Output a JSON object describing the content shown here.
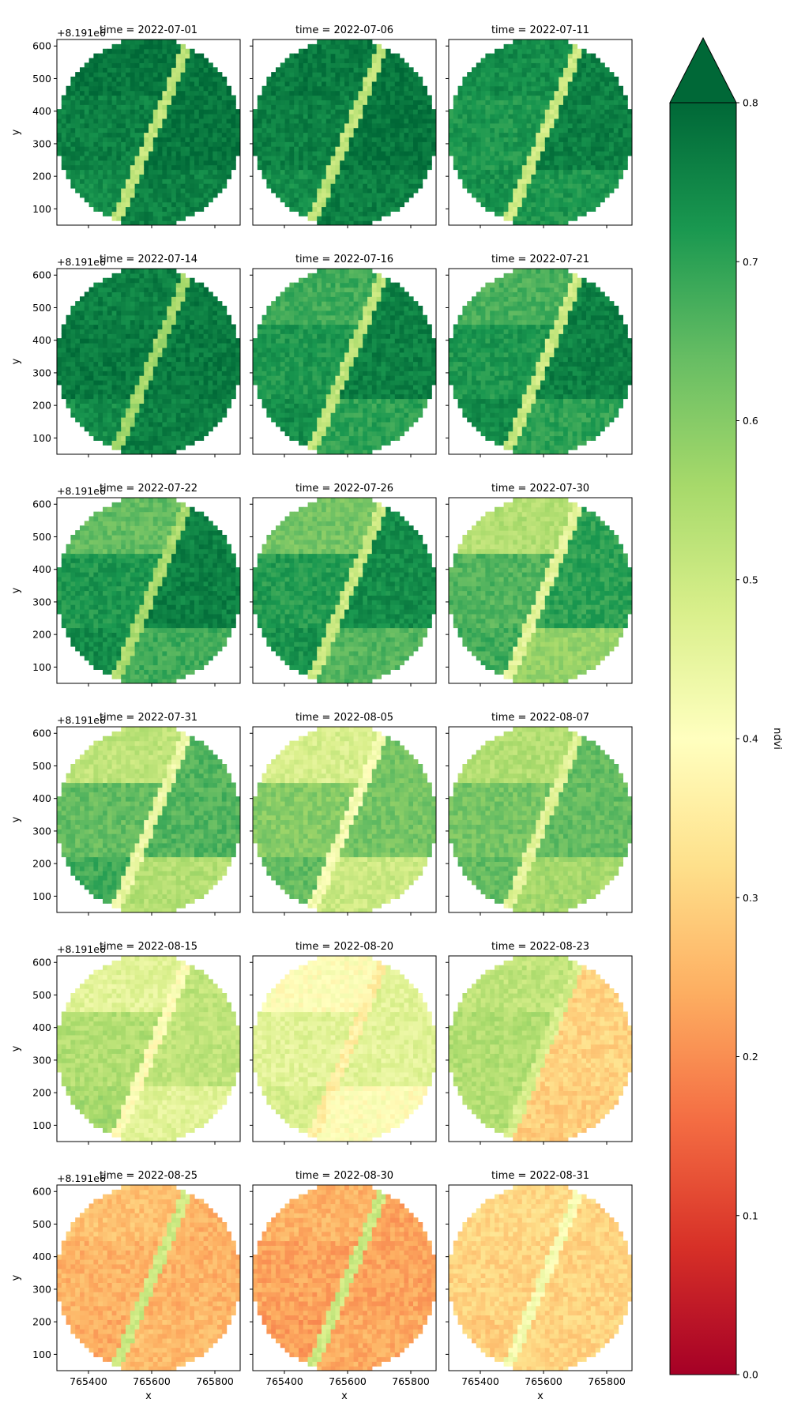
{
  "chart_data": {
    "type": "heatmap",
    "layout": "facet-grid",
    "rows": 6,
    "cols": 3,
    "panels": [
      {
        "title": "time = 2022-07-01",
        "profile": [
          0.78,
          0.76,
          0.74,
          0.52,
          0.78,
          0.76
        ]
      },
      {
        "title": "time = 2022-07-06",
        "profile": [
          0.77,
          0.76,
          0.74,
          0.52,
          0.78,
          0.76
        ]
      },
      {
        "title": "time = 2022-07-11",
        "profile": [
          0.74,
          0.72,
          0.73,
          0.5,
          0.76,
          0.72
        ]
      },
      {
        "title": "time = 2022-07-14",
        "profile": [
          0.76,
          0.77,
          0.74,
          0.56,
          0.77,
          0.76
        ]
      },
      {
        "title": "time = 2022-07-16",
        "profile": [
          0.68,
          0.72,
          0.74,
          0.52,
          0.76,
          0.7
        ]
      },
      {
        "title": "time = 2022-07-21",
        "profile": [
          0.67,
          0.72,
          0.74,
          0.5,
          0.76,
          0.7
        ]
      },
      {
        "title": "time = 2022-07-22",
        "profile": [
          0.64,
          0.72,
          0.74,
          0.55,
          0.76,
          0.68
        ]
      },
      {
        "title": "time = 2022-07-26",
        "profile": [
          0.62,
          0.71,
          0.73,
          0.5,
          0.74,
          0.66
        ]
      },
      {
        "title": "time = 2022-07-30",
        "profile": [
          0.54,
          0.66,
          0.68,
          0.46,
          0.7,
          0.58
        ]
      },
      {
        "title": "time = 2022-07-31",
        "profile": [
          0.52,
          0.64,
          0.68,
          0.44,
          0.66,
          0.54
        ]
      },
      {
        "title": "time = 2022-08-05",
        "profile": [
          0.48,
          0.6,
          0.64,
          0.42,
          0.62,
          0.5
        ]
      },
      {
        "title": "time = 2022-08-07",
        "profile": [
          0.54,
          0.62,
          0.64,
          0.46,
          0.64,
          0.56
        ]
      },
      {
        "title": "time = 2022-08-15",
        "profile": [
          0.46,
          0.54,
          0.56,
          0.4,
          0.52,
          0.46
        ]
      },
      {
        "title": "time = 2022-08-20",
        "profile": [
          0.4,
          0.46,
          0.48,
          0.36,
          0.46,
          0.4
        ]
      },
      {
        "title": "time = 2022-08-23",
        "profile": [
          0.52,
          0.54,
          0.54,
          0.48,
          0.3,
          0.29
        ]
      },
      {
        "title": "time = 2022-08-25",
        "profile": [
          0.27,
          0.25,
          0.24,
          0.5,
          0.25,
          0.26
        ]
      },
      {
        "title": "time = 2022-08-30",
        "profile": [
          0.25,
          0.23,
          0.22,
          0.5,
          0.23,
          0.24
        ]
      },
      {
        "title": "time = 2022-08-31",
        "profile": [
          0.31,
          0.3,
          0.29,
          0.42,
          0.3,
          0.3
        ]
      }
    ],
    "x_axis": {
      "label": "x",
      "lim": [
        765300,
        765880
      ],
      "ticks": [
        765400,
        765600,
        765800
      ],
      "tick_labels": [
        "765400",
        "765600",
        "765800"
      ]
    },
    "y_axis": {
      "label": "y",
      "offset_label": "+8.191e6",
      "lim": [
        50,
        620
      ],
      "ticks": [
        100,
        200,
        300,
        400,
        500,
        600
      ],
      "tick_labels": [
        "100",
        "200",
        "300",
        "400",
        "500",
        "600"
      ]
    },
    "colorbar": {
      "label": "ndvi",
      "colormap": "RdYlGn",
      "range": [
        0.0,
        0.8
      ],
      "extend": "max",
      "ticks": [
        0.0,
        0.1,
        0.2,
        0.3,
        0.4,
        0.5,
        0.6,
        0.7,
        0.8
      ],
      "tick_labels": [
        "0.0",
        "0.1",
        "0.2",
        "0.3",
        "0.4",
        "0.5",
        "0.6",
        "0.7",
        "0.8"
      ]
    }
  }
}
